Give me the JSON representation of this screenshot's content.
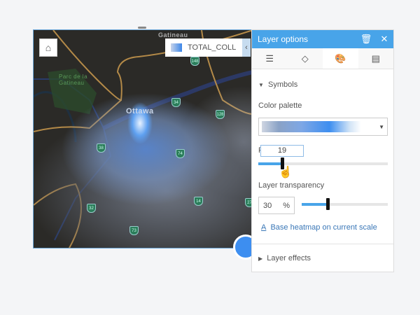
{
  "map": {
    "legend_label": "TOTAL_COLL",
    "collapse_icon": "chevron-left-icon",
    "home_icon": "home-icon",
    "labels": {
      "gatineau": "Gatineau",
      "park": "Parc de la Gatineau",
      "ottawa": "Ottawa"
    },
    "shields": [
      "148",
      "34",
      "128",
      "38",
      "74",
      "32",
      "14",
      "27",
      "73"
    ]
  },
  "panel": {
    "title": "Layer options",
    "delete_icon": "trash-icon",
    "close_icon": "close-icon",
    "tabs": [
      {
        "icon": "list-icon"
      },
      {
        "icon": "symbol-style-icon"
      },
      {
        "icon": "palette-icon",
        "active": true
      },
      {
        "icon": "table-icon"
      }
    ],
    "symbols": {
      "heading": "Symbols",
      "color_palette_label": "Color palette",
      "radius_label": "R",
      "radius_value": "19",
      "radius_fraction": 0.18,
      "transparency_label": "Layer transparency",
      "transparency_value": "30",
      "transparency_unit": "%",
      "transparency_fraction": 0.3,
      "base_link": "Base heatmap on current scale"
    },
    "layer_effects": "Layer effects"
  },
  "colors": {
    "accent": "#48a4e9",
    "heat_peak": "#3d8ef0"
  }
}
